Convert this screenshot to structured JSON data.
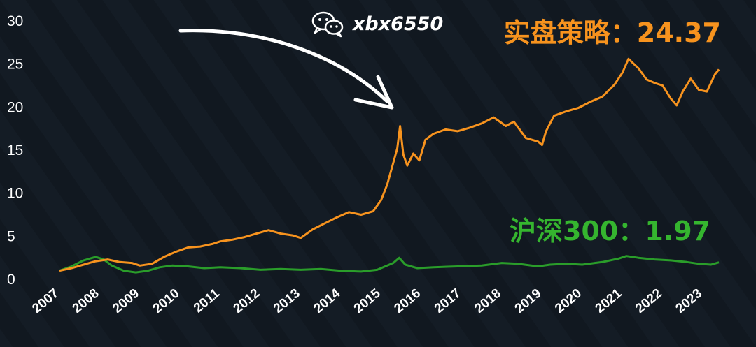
{
  "watermark": {
    "icon": "wechat-icon",
    "text": "xbx6550"
  },
  "labels": {
    "strategy": "实盘策略：24.37",
    "index": "沪深300：1.97"
  },
  "colors": {
    "background": "#111820",
    "strategy": "#f7931e",
    "index": "#2a9d2a",
    "annotation_arrow": "#ffffff"
  },
  "chart_data": {
    "type": "line",
    "title": "",
    "xlabel": "",
    "ylabel": "",
    "xlim": [
      2007.0,
      2023.45
    ],
    "ylim": [
      0,
      30
    ],
    "yticks": [
      0,
      5,
      10,
      15,
      20,
      25,
      30
    ],
    "xticks": [
      "2007",
      "2008",
      "2009",
      "2010",
      "2011",
      "2012",
      "2013",
      "2014",
      "2015",
      "2016",
      "2017",
      "2018",
      "2019",
      "2020",
      "2021",
      "2022",
      "2023"
    ],
    "grid": false,
    "legend": "none",
    "series": [
      {
        "name": "实盘策略",
        "color": "#f7931e",
        "x": [
          2007.0,
          2007.3,
          2007.6,
          2007.9,
          2008.2,
          2008.5,
          2008.8,
          2009.0,
          2009.3,
          2009.6,
          2009.9,
          2010.2,
          2010.5,
          2010.8,
          2011.0,
          2011.3,
          2011.6,
          2011.9,
          2012.2,
          2012.5,
          2012.8,
          2013.0,
          2013.3,
          2013.6,
          2013.9,
          2014.2,
          2014.5,
          2014.8,
          2015.0,
          2015.15,
          2015.3,
          2015.4,
          2015.47,
          2015.55,
          2015.65,
          2015.8,
          2015.95,
          2016.1,
          2016.3,
          2016.6,
          2016.9,
          2017.2,
          2017.5,
          2017.8,
          2018.1,
          2018.3,
          2018.6,
          2018.9,
          2019.0,
          2019.1,
          2019.3,
          2019.6,
          2019.9,
          2020.2,
          2020.5,
          2020.8,
          2021.0,
          2021.15,
          2021.4,
          2021.6,
          2021.8,
          2022.0,
          2022.2,
          2022.35,
          2022.5,
          2022.7,
          2022.9,
          2023.1,
          2023.3,
          2023.4
        ],
        "y": [
          1.0,
          1.3,
          1.7,
          2.1,
          2.3,
          2.0,
          1.9,
          1.6,
          1.8,
          2.6,
          3.2,
          3.7,
          3.8,
          4.1,
          4.4,
          4.6,
          4.9,
          5.3,
          5.7,
          5.3,
          5.1,
          4.8,
          5.8,
          6.5,
          7.2,
          7.8,
          7.5,
          7.9,
          9.2,
          11.0,
          13.5,
          15.2,
          17.8,
          14.5,
          13.2,
          14.6,
          13.8,
          16.2,
          16.9,
          17.4,
          17.2,
          17.6,
          18.1,
          18.8,
          17.8,
          18.3,
          16.4,
          16.0,
          15.6,
          17.2,
          19.0,
          19.5,
          19.9,
          20.6,
          21.2,
          22.6,
          24.0,
          25.6,
          24.5,
          23.2,
          22.8,
          22.5,
          21.0,
          20.2,
          21.8,
          23.3,
          22.0,
          21.8,
          23.8,
          24.37
        ]
      },
      {
        "name": "沪深300",
        "color": "#2a9d2a",
        "x": [
          2007.0,
          2007.3,
          2007.6,
          2007.9,
          2008.1,
          2008.3,
          2008.6,
          2008.9,
          2009.2,
          2009.5,
          2009.8,
          2010.2,
          2010.6,
          2011.0,
          2011.5,
          2012.0,
          2012.5,
          2013.0,
          2013.5,
          2014.0,
          2014.5,
          2014.9,
          2015.1,
          2015.3,
          2015.45,
          2015.6,
          2015.9,
          2016.3,
          2016.9,
          2017.5,
          2018.0,
          2018.4,
          2018.9,
          2019.2,
          2019.6,
          2020.0,
          2020.5,
          2020.9,
          2021.1,
          2021.4,
          2021.8,
          2022.2,
          2022.6,
          2022.9,
          2023.2,
          2023.4
        ],
        "y": [
          1.0,
          1.5,
          2.2,
          2.6,
          2.3,
          1.6,
          1.0,
          0.8,
          1.0,
          1.4,
          1.6,
          1.5,
          1.3,
          1.4,
          1.3,
          1.1,
          1.2,
          1.1,
          1.2,
          1.0,
          0.9,
          1.1,
          1.5,
          1.9,
          2.5,
          1.7,
          1.3,
          1.4,
          1.5,
          1.6,
          1.9,
          1.8,
          1.5,
          1.7,
          1.8,
          1.7,
          2.0,
          2.4,
          2.7,
          2.5,
          2.3,
          2.2,
          2.0,
          1.8,
          1.7,
          1.97
        ]
      }
    ]
  }
}
